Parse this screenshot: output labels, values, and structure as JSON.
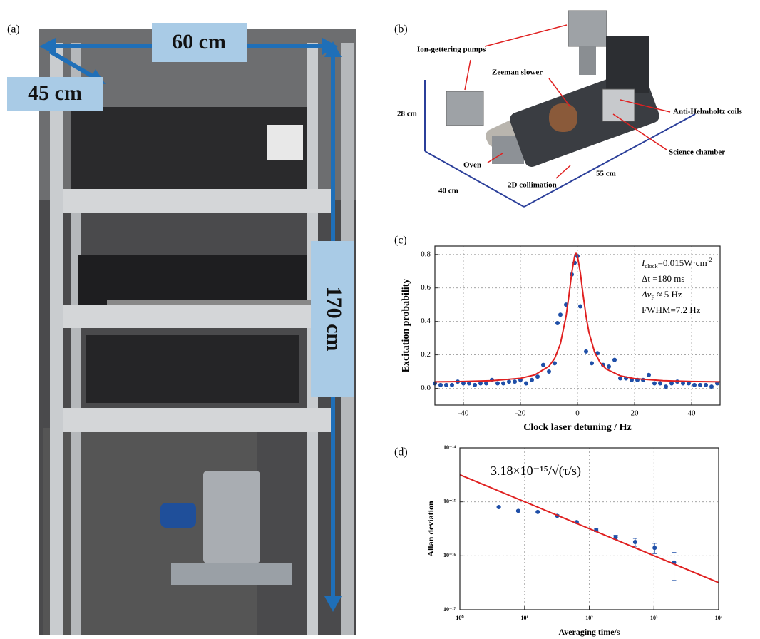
{
  "panel_labels": [
    "(a)",
    "(b)",
    "(c)",
    "(d)"
  ],
  "photo": {
    "width_label": "60 cm",
    "depth_label": "45 cm",
    "height_label": "170 cm"
  },
  "render": {
    "labels": [
      "Ion-gettering pumps",
      "Zeeman slower",
      "28 cm",
      "Anti-Helmholtz coils",
      "Science chamber",
      "Oven",
      "55 cm",
      "2D collimation",
      "40 cm"
    ]
  },
  "chart_data": [
    {
      "type": "scatter",
      "xlabel": "Clock laser detuning / Hz",
      "ylabel": "Excitation probability",
      "xlim": [
        -50,
        50
      ],
      "ylim": [
        -0.1,
        0.85
      ],
      "xticks": [
        -40,
        -20,
        0,
        20,
        40
      ],
      "yticks": [
        {
          "value": 0,
          "label": "0.0"
        },
        0.2,
        0.4,
        0.6,
        0.8
      ],
      "grid": true,
      "annotations": [
        {
          "main": "I",
          "sub": "clock",
          "rest": "=0.015W·cm",
          "sup": "-2"
        },
        "Δt =180 ms",
        {
          "main": "Δν",
          "sub": "F",
          "rest": " ≈ 5 Hz"
        },
        "FWHM=7.2 Hz"
      ],
      "series": [
        {
          "style": "points",
          "color": "#1f4fa8",
          "x": [
            -50,
            -48,
            -46,
            -44,
            -42,
            -40,
            -38,
            -36,
            -34,
            -32,
            -30,
            -28,
            -26,
            -24,
            -22,
            -20,
            -18,
            -16,
            -14,
            -12,
            -10,
            -8,
            -7,
            -6,
            -4,
            -2,
            -1,
            0,
            1,
            3,
            5,
            7,
            9,
            11,
            13,
            15,
            17,
            19,
            21,
            23,
            25,
            27,
            29,
            31,
            33,
            35,
            37,
            39,
            41,
            43,
            45,
            47,
            49
          ],
          "values": [
            0.03,
            0.02,
            0.02,
            0.02,
            0.04,
            0.03,
            0.03,
            0.02,
            0.03,
            0.03,
            0.05,
            0.03,
            0.03,
            0.04,
            0.04,
            0.05,
            0.03,
            0.05,
            0.07,
            0.14,
            0.1,
            0.15,
            0.39,
            0.44,
            0.5,
            0.68,
            0.75,
            0.79,
            0.49,
            0.22,
            0.15,
            0.21,
            0.14,
            0.13,
            0.17,
            0.06,
            0.06,
            0.05,
            0.05,
            0.05,
            0.08,
            0.03,
            0.03,
            0.01,
            0.03,
            0.04,
            0.03,
            0.03,
            0.02,
            0.02,
            0.02,
            0.01,
            0.03
          ]
        },
        {
          "style": "line",
          "color": "#e02020",
          "x": [
            -50,
            -40,
            -30,
            -20,
            -15,
            -10,
            -8,
            -6,
            -4,
            -3,
            -2,
            -1,
            -0.5,
            0,
            1,
            2,
            3,
            4,
            6,
            8,
            10,
            15,
            20,
            30,
            40,
            50
          ],
          "values": [
            0.039,
            0.041,
            0.046,
            0.06,
            0.08,
            0.132,
            0.179,
            0.266,
            0.431,
            0.555,
            0.691,
            0.79,
            0.805,
            0.79,
            0.691,
            0.555,
            0.431,
            0.335,
            0.216,
            0.152,
            0.116,
            0.075,
            0.058,
            0.046,
            0.041,
            0.039
          ]
        }
      ]
    },
    {
      "type": "scatter",
      "log_x": true,
      "log_y": true,
      "xlabel": "Averaging time/s",
      "ylabel": "Allan deviation",
      "xlim": [
        1,
        10000
      ],
      "ylim": [
        1e-17,
        1e-14
      ],
      "xticks": [
        {
          "value": 1,
          "label": "10⁰"
        },
        {
          "value": 10,
          "label": "10¹"
        },
        {
          "value": 100,
          "label": "10²"
        },
        {
          "value": 1000,
          "label": "10³"
        },
        {
          "value": 10000,
          "label": "10⁴"
        }
      ],
      "yticks": [
        {
          "value": 1e-17,
          "label": "10⁻¹⁷"
        },
        {
          "value": 1e-16,
          "label": "10⁻¹⁶"
        },
        {
          "value": 1e-15,
          "label": "10⁻¹⁵"
        },
        {
          "value": 1e-14,
          "label": "10⁻¹⁴"
        }
      ],
      "grid": true,
      "annotations": [
        "3.18×10⁻¹⁵/√(τ/s)"
      ],
      "series": [
        {
          "style": "points",
          "color": "#1f4fa8",
          "x": [
            4,
            8,
            16,
            32,
            64,
            128,
            256,
            512,
            1024,
            2048
          ],
          "values": [
            8e-16,
            6.8e-16,
            6.5e-16,
            5.5e-16,
            4.2e-16,
            3e-16,
            2.2e-16,
            1.8e-16,
            1.4e-16,
            7.5e-17
          ],
          "errors": [
            2e-17,
            2e-17,
            2e-17,
            2e-17,
            2e-17,
            2e-17,
            2e-17,
            3e-17,
            3e-17,
            4e-17
          ]
        },
        {
          "style": "line",
          "color": "#e02020",
          "x": [
            1,
            10000
          ],
          "values": [
            3.18e-15,
            3.18e-17
          ]
        }
      ]
    }
  ]
}
